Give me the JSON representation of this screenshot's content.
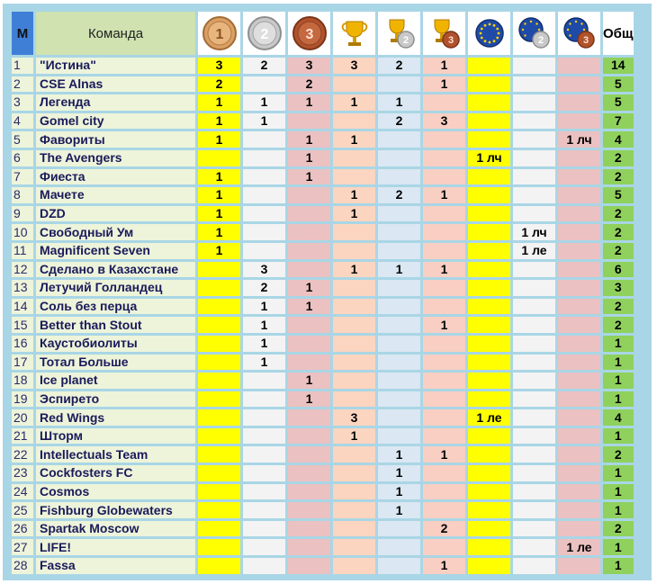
{
  "header": {
    "m_label": "М",
    "team_label": "Команда",
    "total_label": "Общ",
    "coin_digits": [
      "1",
      "2",
      "3"
    ],
    "icons": [
      "gold-medal-icon",
      "silver-medal-icon",
      "bronze-medal-icon",
      "gold-cup-icon",
      "silver-cup-icon",
      "bronze-cup-icon",
      "euro-gold-icon",
      "euro-silver-icon",
      "euro-bronze-icon"
    ]
  },
  "colors": {
    "gold": "#ffff00",
    "silver": "#f3f3f3",
    "bronze": "#ebc1c1",
    "cup_gold": "#fbd5bf",
    "cup_silver": "#dbe7f2",
    "cup_bronze": "#f8cfc2",
    "total": "#8fd15c",
    "team": "#edf4da",
    "header_m": "#3f7fd6",
    "frame": "#a9d6e6"
  },
  "rows": [
    {
      "num": "1",
      "team": "\"Истина\"",
      "cells": [
        "3",
        "2",
        "3",
        "3",
        "2",
        "1",
        "",
        "",
        ""
      ],
      "total": "14"
    },
    {
      "num": "2",
      "team": "CSE Alnas",
      "cells": [
        "2",
        "",
        "2",
        "",
        "",
        "1",
        "",
        "",
        ""
      ],
      "total": "5"
    },
    {
      "num": "3",
      "team": "Легенда",
      "cells": [
        "1",
        "1",
        "1",
        "1",
        "1",
        "",
        "",
        "",
        ""
      ],
      "total": "5"
    },
    {
      "num": "4",
      "team": "Gomel city",
      "cells": [
        "1",
        "1",
        "",
        "",
        "2",
        "3",
        "",
        "",
        ""
      ],
      "total": "7"
    },
    {
      "num": "5",
      "team": "Фавориты",
      "cells": [
        "1",
        "",
        "1",
        "1",
        "",
        "",
        "",
        "",
        "1 лч"
      ],
      "total": "4"
    },
    {
      "num": "6",
      "team": "The Avengers",
      "cells": [
        "",
        "",
        "1",
        "",
        "",
        "",
        "1 лч",
        "",
        ""
      ],
      "total": "2"
    },
    {
      "num": "7",
      "team": "Фиеста",
      "cells": [
        "1",
        "",
        "1",
        "",
        "",
        "",
        "",
        "",
        ""
      ],
      "total": "2"
    },
    {
      "num": "8",
      "team": "Мачете",
      "cells": [
        "1",
        "",
        "",
        "1",
        "2",
        "1",
        "",
        "",
        ""
      ],
      "total": "5"
    },
    {
      "num": "9",
      "team": "DZD",
      "cells": [
        "1",
        "",
        "",
        "1",
        "",
        "",
        "",
        "",
        ""
      ],
      "total": "2"
    },
    {
      "num": "10",
      "team": "Свободный Ум",
      "cells": [
        "1",
        "",
        "",
        "",
        "",
        "",
        "",
        "1 лч",
        ""
      ],
      "total": "2"
    },
    {
      "num": "11",
      "team": "Magnificent Seven",
      "cells": [
        "1",
        "",
        "",
        "",
        "",
        "",
        "",
        "1 ле",
        ""
      ],
      "total": "2"
    },
    {
      "num": "12",
      "team": "Сделано в Казахстане",
      "cells": [
        "",
        "3",
        "",
        "1",
        "1",
        "1",
        "",
        "",
        ""
      ],
      "total": "6"
    },
    {
      "num": "13",
      "team": "Летучий Голландец",
      "cells": [
        "",
        "2",
        "1",
        "",
        "",
        "",
        "",
        "",
        ""
      ],
      "total": "3"
    },
    {
      "num": "14",
      "team": "Соль без перца",
      "cells": [
        "",
        "1",
        "1",
        "",
        "",
        "",
        "",
        "",
        ""
      ],
      "total": "2"
    },
    {
      "num": "15",
      "team": "Better than Stout",
      "cells": [
        "",
        "1",
        "",
        "",
        "",
        "1",
        "",
        "",
        ""
      ],
      "total": "2"
    },
    {
      "num": "16",
      "team": "Каустобиолиты",
      "cells": [
        "",
        "1",
        "",
        "",
        "",
        "",
        "",
        "",
        ""
      ],
      "total": "1"
    },
    {
      "num": "17",
      "team": "Тотал Больше",
      "cells": [
        "",
        "1",
        "",
        "",
        "",
        "",
        "",
        "",
        ""
      ],
      "total": "1"
    },
    {
      "num": "18",
      "team": "Ice planet",
      "cells": [
        "",
        "",
        "1",
        "",
        "",
        "",
        "",
        "",
        ""
      ],
      "total": "1"
    },
    {
      "num": "19",
      "team": "Эспирето",
      "cells": [
        "",
        "",
        "1",
        "",
        "",
        "",
        "",
        "",
        ""
      ],
      "total": "1"
    },
    {
      "num": "20",
      "team": "Red Wings",
      "cells": [
        "",
        "",
        "",
        "3",
        "",
        "",
        "1 ле",
        "",
        ""
      ],
      "total": "4"
    },
    {
      "num": "21",
      "team": "Шторм",
      "cells": [
        "",
        "",
        "",
        "1",
        "",
        "",
        "",
        "",
        ""
      ],
      "total": "1"
    },
    {
      "num": "22",
      "team": "Intellectuals Team",
      "cells": [
        "",
        "",
        "",
        "",
        "1",
        "1",
        "",
        "",
        ""
      ],
      "total": "2"
    },
    {
      "num": "23",
      "team": "Cockfosters FC",
      "cells": [
        "",
        "",
        "",
        "",
        "1",
        "",
        "",
        "",
        ""
      ],
      "total": "1"
    },
    {
      "num": "24",
      "team": "Cosmos",
      "cells": [
        "",
        "",
        "",
        "",
        "1",
        "",
        "",
        "",
        ""
      ],
      "total": "1"
    },
    {
      "num": "25",
      "team": "Fishburg Globewaters",
      "cells": [
        "",
        "",
        "",
        "",
        "1",
        "",
        "",
        "",
        ""
      ],
      "total": "1"
    },
    {
      "num": "26",
      "team": "Spartak Moscow",
      "cells": [
        "",
        "",
        "",
        "",
        "",
        "2",
        "",
        "",
        ""
      ],
      "total": "2"
    },
    {
      "num": "27",
      "team": "LIFE!",
      "cells": [
        "",
        "",
        "",
        "",
        "",
        "",
        "",
        "",
        "1 ле"
      ],
      "total": "1"
    },
    {
      "num": "28",
      "team": "Fassa",
      "cells": [
        "",
        "",
        "",
        "",
        "",
        "1",
        "",
        "",
        ""
      ],
      "total": "1"
    }
  ]
}
